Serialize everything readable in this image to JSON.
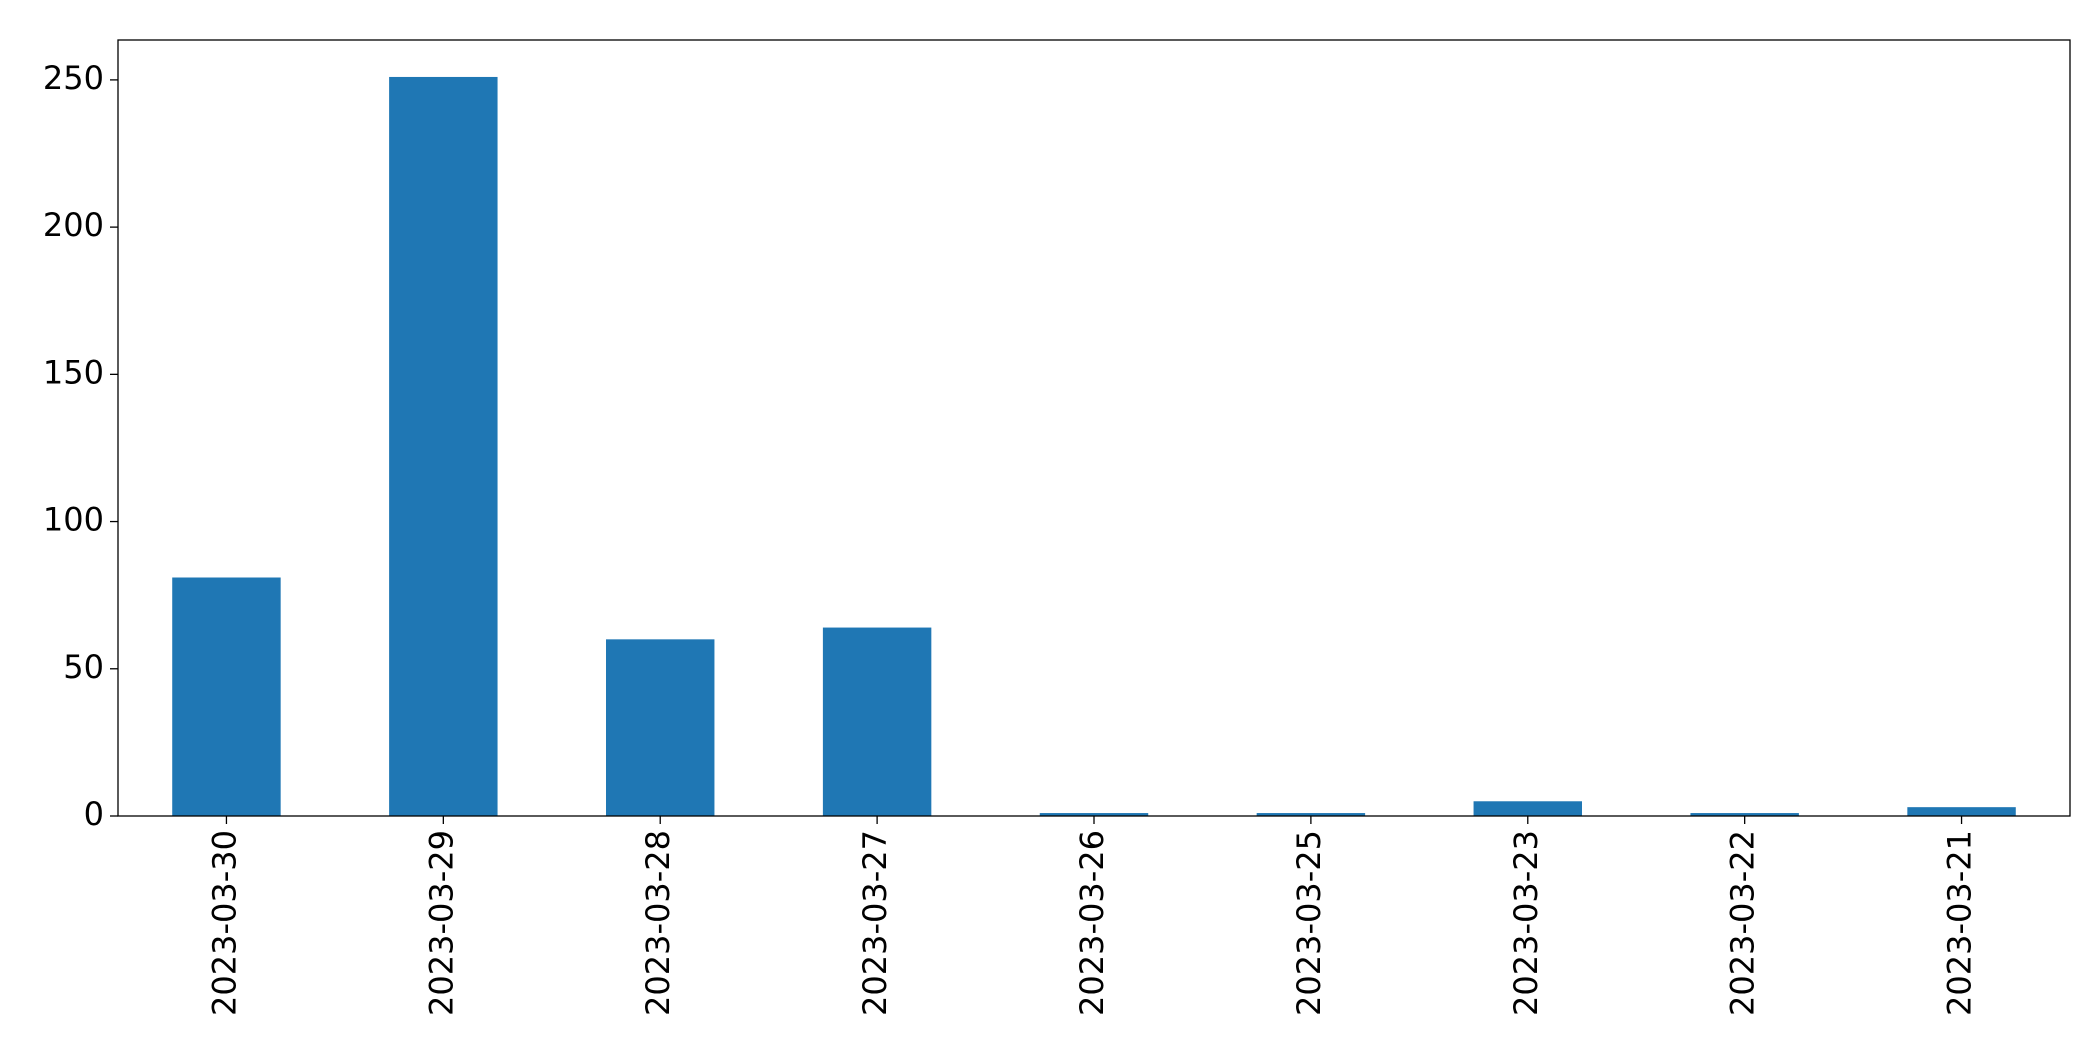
{
  "chart_data": {
    "type": "bar",
    "categories": [
      "2023-03-30",
      "2023-03-29",
      "2023-03-28",
      "2023-03-27",
      "2023-03-26",
      "2023-03-25",
      "2023-03-23",
      "2023-03-22",
      "2023-03-21"
    ],
    "values": [
      81,
      251,
      60,
      64,
      1,
      1,
      5,
      1,
      3
    ],
    "color": "#1f77b4",
    "ylim": [
      0,
      263.55
    ],
    "yticks": [
      0,
      50,
      100,
      150,
      200,
      250
    ],
    "grid": false
  }
}
